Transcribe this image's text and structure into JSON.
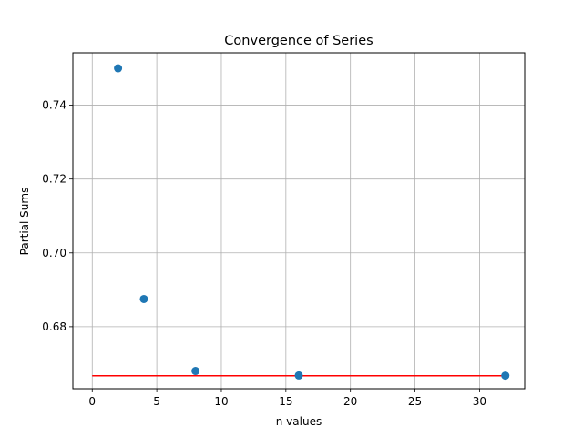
{
  "chart_data": {
    "type": "scatter",
    "title": "Convergence of Series",
    "xlabel": "n values",
    "ylabel": "Partial Sums",
    "xlim": [
      -1.5,
      33.5
    ],
    "ylim": [
      0.6632,
      0.7542
    ],
    "xticks": [
      0,
      5,
      10,
      15,
      20,
      25,
      30
    ],
    "yticks": [
      0.68,
      0.7,
      0.72,
      0.74
    ],
    "xtick_labels": [
      "0",
      "5",
      "10",
      "15",
      "20",
      "25",
      "30"
    ],
    "ytick_labels": [
      "0.68",
      "0.70",
      "0.72",
      "0.74"
    ],
    "grid": true,
    "series": [
      {
        "x": [
          2,
          4,
          8,
          16,
          32
        ],
        "y": [
          0.75,
          0.6875,
          0.668,
          0.6668,
          0.66675
        ],
        "color": "#1f77b4"
      }
    ],
    "reference_line": {
      "x": [
        0,
        32
      ],
      "y": [
        0.6667,
        0.6667
      ],
      "color": "#ff0000"
    }
  }
}
